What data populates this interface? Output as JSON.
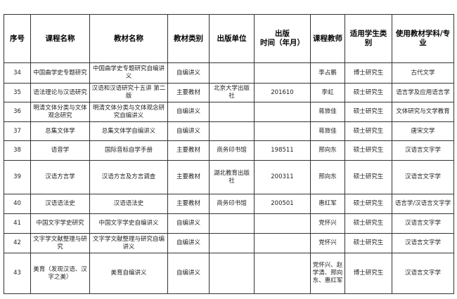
{
  "headers": [
    "序号",
    "课程名称",
    "教材名称",
    "教材类别",
    "出版单位",
    "出版\n时间（年月）",
    "课程教师",
    "适用学生类别",
    "使用教材学科/专业"
  ],
  "rows": [
    [
      "34",
      "中国曲学史专题研究",
      "中国曲学史专题研究自编讲义",
      "自编讲义",
      "",
      "",
      "李占鹏",
      "博士研究生",
      "古代文学"
    ],
    [
      "35",
      "语法理论与汉语研究",
      "汉语和汉语研究十五讲 第二版",
      "主要教材",
      "北京大学出版社",
      "201610",
      "李虹",
      "硕士研究生",
      "语言学及应用语言学"
    ],
    [
      "36",
      "明清文体分类与文体观念研究",
      "明清文体分类与文体观念研究自编讲义",
      "自编讲义",
      "",
      "",
      "蒋旅佳",
      "硕士研究生",
      "文体研究与文学教育"
    ],
    [
      "37",
      "总集文体学",
      "总集文体学自编讲义",
      "自编讲义",
      "",
      "",
      "蒋旅佳",
      "硕士研究生",
      "唐宋文学"
    ],
    [
      "38",
      "语音学",
      "国际音标自学手册",
      "主要教材",
      "商务印书馆",
      "198511",
      "邢向东",
      "硕士研究生",
      "汉语言文字学"
    ],
    [
      "39",
      "汉语方言学",
      "汉语方言及方言调查",
      "主要教材",
      "湖北教育出版社",
      "200311",
      "邢向东",
      "硕士研究生",
      "汉语言文字学"
    ],
    [
      "40",
      "汉语语法史",
      "汉语语法史",
      "主要教材",
      "商务印书馆",
      "200501",
      "惠红军",
      "硕士研究生",
      "语言学/汉语言文字学"
    ],
    [
      "41",
      "中国文字学史研究",
      "中国文字学史自编讲义",
      "自编讲义",
      "",
      "",
      "党怀兴",
      "硕士研究生",
      "汉语言文字学"
    ],
    [
      "42",
      "文字学文献整理与研究",
      "文字学文献整理与研究自编讲义",
      "自编讲义",
      "",
      "",
      "党怀兴",
      "硕士研究生",
      "汉语言文字学"
    ],
    [
      "43",
      "美育（发现汉语、汉字之美）",
      "美育自编讲义",
      "自编讲义",
      "",
      "",
      "党怀兴、赵学清、邢向东、惠红军",
      "博士研究生",
      "汉语言文字学"
    ]
  ]
}
